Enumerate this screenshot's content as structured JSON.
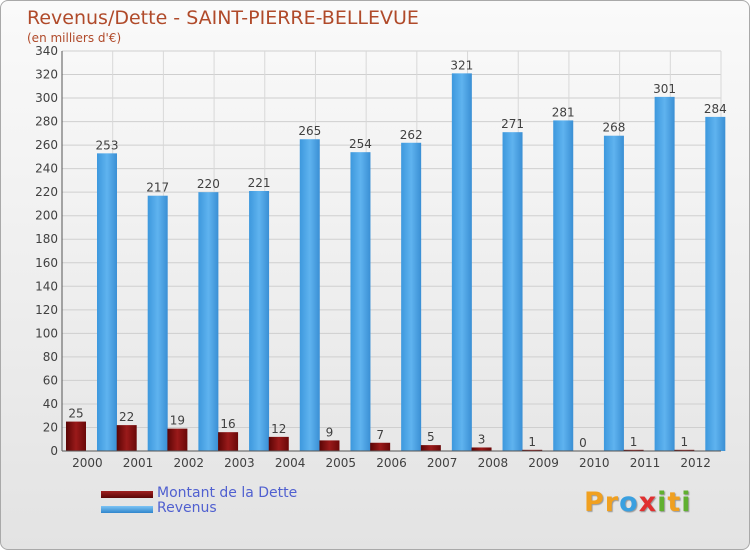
{
  "chart_data": {
    "type": "bar",
    "title": "Revenus/Dette - SAINT-PIERRE-BELLEVUE",
    "subtitle": "(en milliers d'€)",
    "categories": [
      "2000",
      "2001",
      "2002",
      "2003",
      "2004",
      "2005",
      "2006",
      "2007",
      "2008",
      "2009",
      "2010",
      "2011",
      "2012"
    ],
    "series": [
      {
        "name": "Montant de la Dette",
        "color": "#7a0a0a",
        "values": [
          25,
          22,
          19,
          16,
          12,
          9,
          7,
          5,
          3,
          1,
          0,
          1,
          1
        ]
      },
      {
        "name": "Revenus",
        "color": "#4aa3e8",
        "values": [
          253,
          217,
          220,
          221,
          265,
          254,
          262,
          321,
          271,
          281,
          268,
          301,
          284
        ]
      }
    ],
    "ylim": [
      0,
      340
    ],
    "yticks": [
      0,
      20,
      40,
      60,
      80,
      100,
      120,
      140,
      160,
      180,
      200,
      220,
      240,
      260,
      280,
      300,
      320,
      340
    ],
    "grid": true,
    "legend_position": "bottom-left"
  },
  "logo": {
    "letters": [
      "P",
      "r",
      "o",
      "x",
      "i",
      "t",
      "i"
    ],
    "colors": [
      "#f0a020",
      "#f0a020",
      "#3aa0e0",
      "#e03030",
      "#60b030",
      "#f0a020",
      "#60b030"
    ]
  }
}
